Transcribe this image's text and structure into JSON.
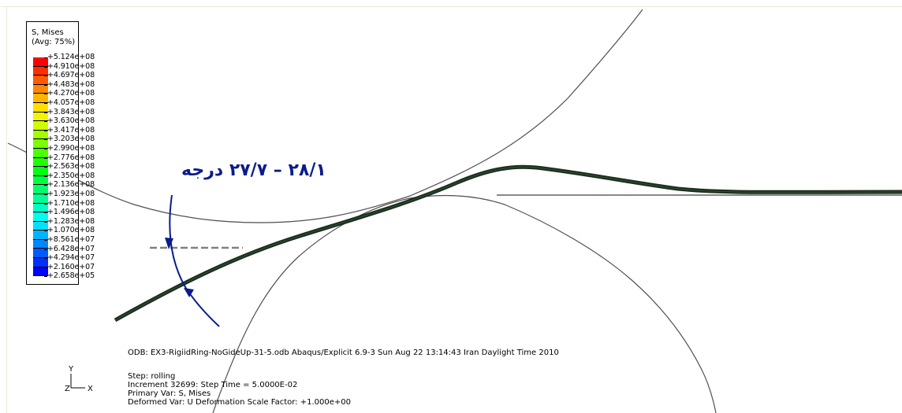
{
  "legend": {
    "title_line1": "S, Mises",
    "title_line2": "(Avg: 75%)",
    "colors": [
      "#ff0000",
      "#ff2d00",
      "#ff5a00",
      "#ff8700",
      "#ffb400",
      "#ffdf00",
      "#f3f300",
      "#cfff00",
      "#a3ff00",
      "#78ff00",
      "#4cff00",
      "#20ff00",
      "#00ff12",
      "#00ff3f",
      "#00ff6b",
      "#00ff97",
      "#00ffc3",
      "#00ffef",
      "#00e0ff",
      "#00b3ff",
      "#0087ff",
      "#005bff",
      "#002fff",
      "#0000ff"
    ],
    "values": [
      "+5.124e+08",
      "+4.910e+08",
      "+4.697e+08",
      "+4.483e+08",
      "+4.270e+08",
      "+4.057e+08",
      "+3.843e+08",
      "+3.630e+08",
      "+3.417e+08",
      "+3.203e+08",
      "+2.990e+08",
      "+2.776e+08",
      "+2.563e+08",
      "+2.350e+08",
      "+2.136e+08",
      "+1.923e+08",
      "+1.710e+08",
      "+1.496e+08",
      "+1.283e+08",
      "+1.070e+08",
      "+8.561e+07",
      "+6.428e+07",
      "+4.294e+07",
      "+2.160e+07",
      "+2.658e+05"
    ]
  },
  "annotation": {
    "angle_text": "۲۸/۱ – ۲۷/۷ درجه",
    "color": "#0a1c8c"
  },
  "info": {
    "odb_line": "ODB: EX3-RigiidRing-NoGideUp-31-5.odb    Abaqus/Explicit 6.9-3    Sun Aug 22 13:14:43 Iran Daylight Time 2010",
    "step": "Step: rolling",
    "increment": "Increment     32699: Step Time =    5.0000E-02",
    "primary_var": "Primary Var: S, Mises",
    "deformed_var": "Deformed Var: U   Deformation Scale Factor: +1.000e+00"
  },
  "triad": {
    "y": "Y",
    "z": "Z",
    "x": "X"
  }
}
